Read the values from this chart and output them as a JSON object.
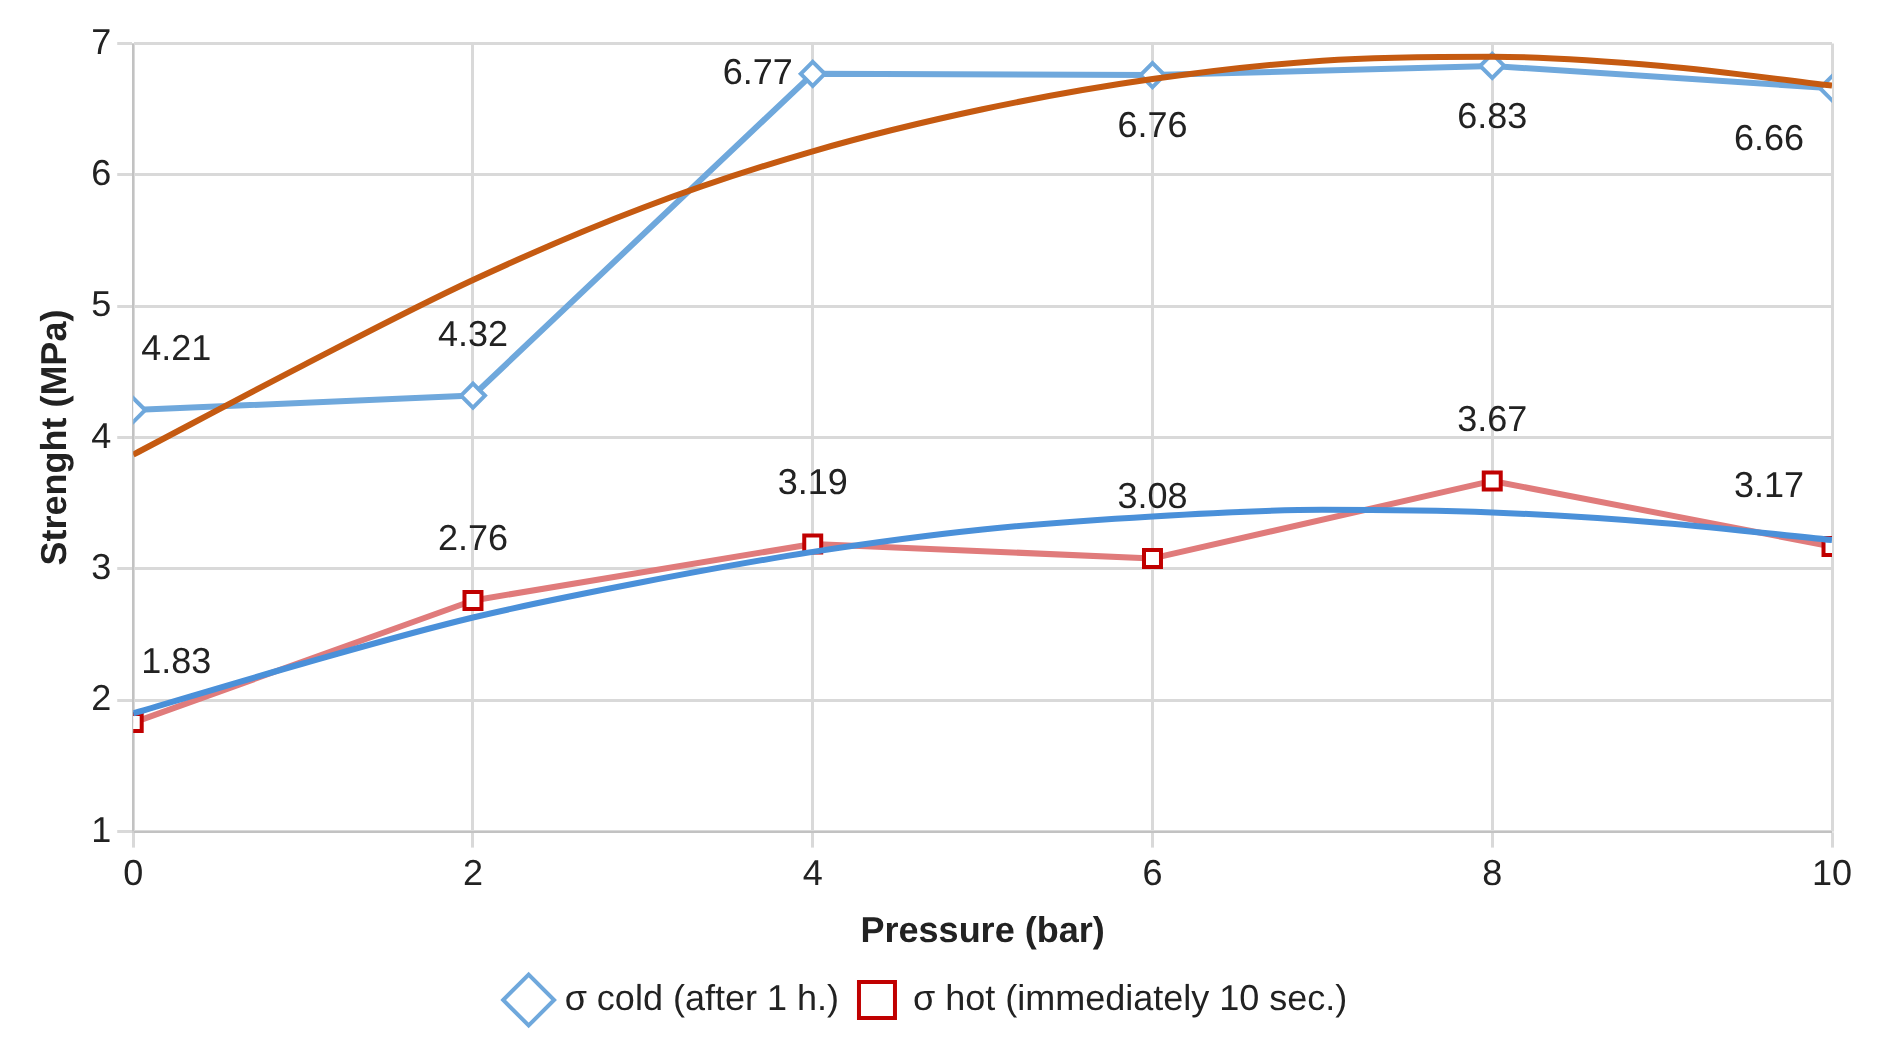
{
  "chart_data": {
    "type": "line",
    "xlabel": "Pressure (bar)",
    "ylabel": "Strenght (MPa)",
    "x": [
      0,
      2,
      4,
      6,
      8,
      10
    ],
    "xlim": [
      0,
      10
    ],
    "xticks": [
      0,
      2,
      4,
      6,
      8,
      10
    ],
    "ylim": [
      1,
      7
    ],
    "yticks": [
      1,
      2,
      3,
      4,
      5,
      6,
      7
    ],
    "grid": true,
    "legend": "bottom",
    "series": [
      {
        "name": "σ cold (after 1 h.)",
        "color": "#6fa8dc",
        "marker": "diamond",
        "values": [
          4.21,
          4.32,
          6.77,
          6.76,
          6.83,
          6.66
        ],
        "value_labels": [
          "4.21",
          "4.32",
          "6.77",
          "6.76",
          "6.83",
          "6.66"
        ]
      },
      {
        "name": "σ hot (immediately 10 sec.)",
        "color": "#e07b7b",
        "marker": "square",
        "values": [
          1.83,
          2.76,
          3.19,
          3.08,
          3.67,
          3.17
        ],
        "value_labels": [
          "1.83",
          "2.76",
          "3.19",
          "3.08",
          "3.67",
          "3.17"
        ]
      },
      {
        "color": "#c55a11",
        "marker": "none",
        "x": [
          0,
          1,
          2,
          3,
          4,
          5,
          6,
          7,
          8,
          9,
          10
        ],
        "values": [
          3.87,
          4.55,
          5.2,
          5.75,
          6.18,
          6.5,
          6.73,
          6.87,
          6.9,
          6.83,
          6.68
        ]
      },
      {
        "color": "#4a90d9",
        "marker": "none",
        "x": [
          0,
          1,
          2,
          3,
          4,
          5,
          6,
          7,
          8,
          9,
          10
        ],
        "values": [
          1.9,
          2.28,
          2.63,
          2.9,
          3.13,
          3.3,
          3.4,
          3.45,
          3.43,
          3.35,
          3.22
        ]
      }
    ]
  }
}
